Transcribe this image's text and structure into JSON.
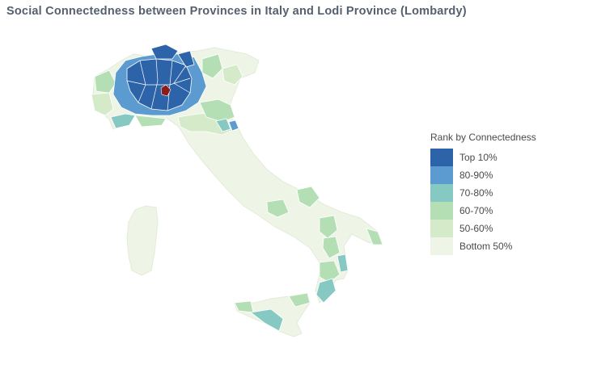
{
  "title": "Social Connectedness between Provinces in Italy and Lodi Province (Lombardy)",
  "legend": {
    "title": "Rank by Connectedness",
    "items": [
      {
        "label": "Top 10%",
        "color": "#2d63a8"
      },
      {
        "label": "80-90%",
        "color": "#5b9bcf"
      },
      {
        "label": "70-80%",
        "color": "#86c9c2"
      },
      {
        "label": "60-70%",
        "color": "#b4deb4"
      },
      {
        "label": "50-60%",
        "color": "#d5eac8"
      },
      {
        "label": "Bottom 50%",
        "color": "#eef5e6"
      }
    ]
  },
  "colors": {
    "highlight": "#8b1a1a",
    "border": "#ffffff"
  },
  "icons": {
    "map": "italy-province-map",
    "focus": "lodi-province-marker"
  }
}
